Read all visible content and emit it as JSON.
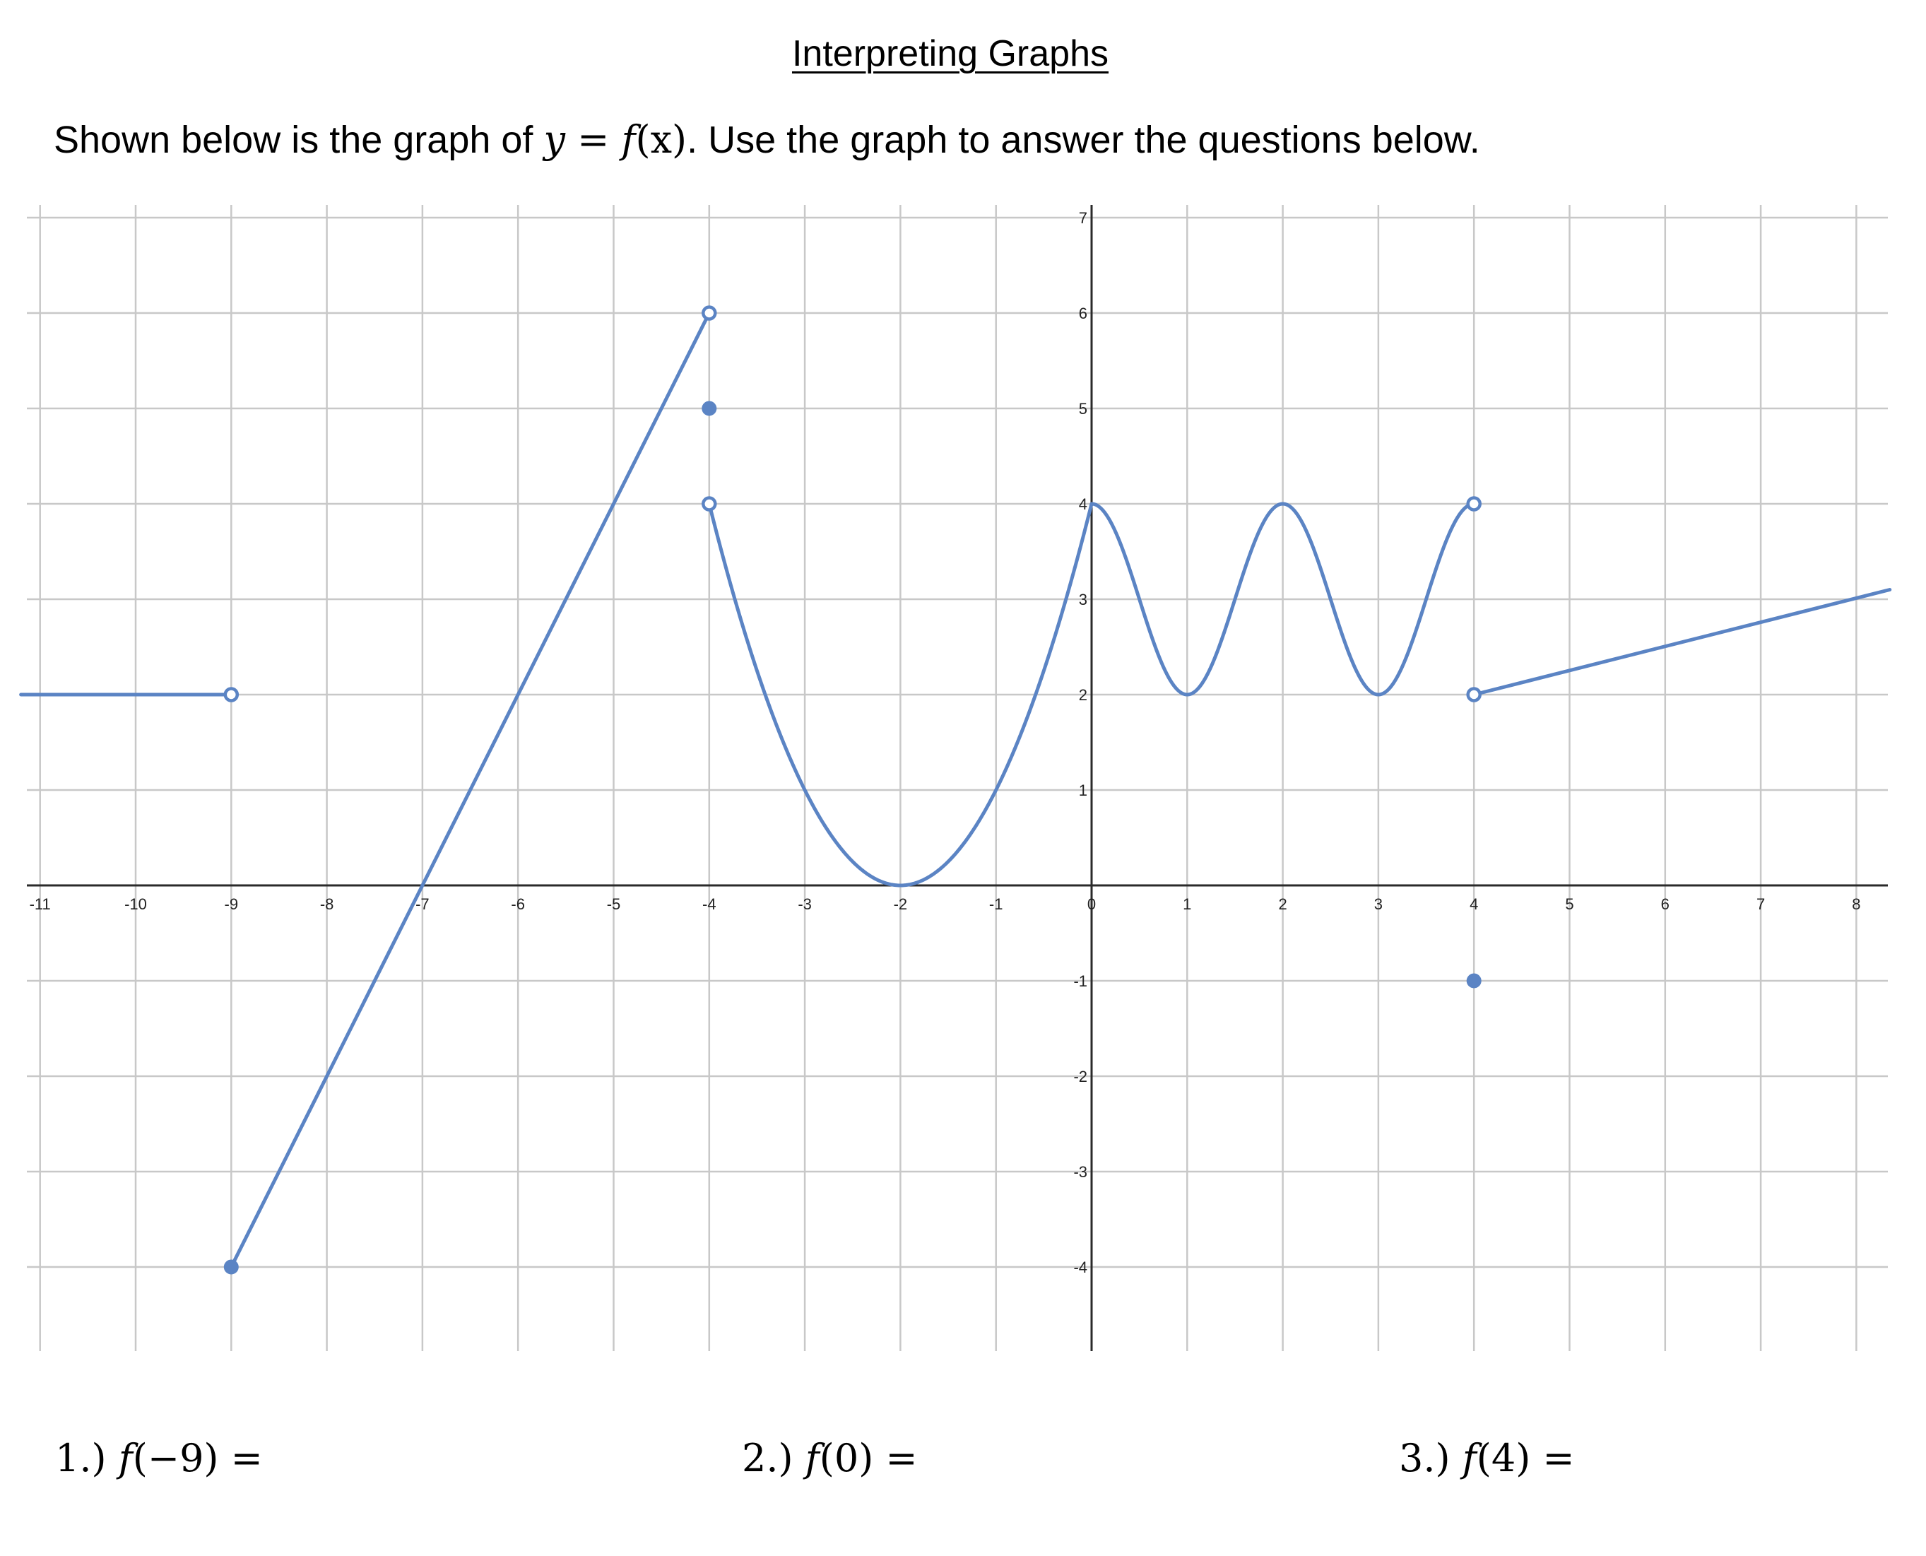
{
  "title": "Interpreting Graphs",
  "intro": {
    "before": "Shown below is the graph of ",
    "math_var": "y",
    "math_eq": " = ",
    "math_fn": "f",
    "math_arg": "(x)",
    "after": ".  Use the graph to answer the questions below."
  },
  "questions": [
    {
      "number": "1.) ",
      "fn": "f",
      "arg": "(−9)",
      "eq": " ="
    },
    {
      "number": "2.) ",
      "fn": "f",
      "arg": "(0)",
      "eq": " ="
    },
    {
      "number": "3.) ",
      "fn": "f",
      "arg": "(4)",
      "eq": " ="
    }
  ],
  "colors": {
    "curve": "#5b84c4",
    "grid": "#c8c8c8",
    "axis": "#2a2a2a"
  },
  "chart_data": {
    "type": "line",
    "title": "",
    "xlabel": "",
    "ylabel": "",
    "xlim": [
      -11,
      8
    ],
    "ylim": [
      -4,
      7
    ],
    "grid": true,
    "x_ticks": [
      "-11",
      "-10",
      "-9",
      "-8",
      "-7",
      "-6",
      "-5",
      "-4",
      "-3",
      "-2",
      "-1",
      "0",
      "1",
      "2",
      "3",
      "4",
      "5",
      "6",
      "7",
      "8"
    ],
    "y_ticks": [
      {
        "v": 7,
        "label": "7"
      },
      {
        "v": 6,
        "label": "6"
      },
      {
        "v": 5,
        "label": "5"
      },
      {
        "v": 4,
        "label": "4"
      },
      {
        "v": 3,
        "label": "3"
      },
      {
        "v": 2,
        "label": "2"
      },
      {
        "v": 1,
        "label": "1"
      },
      {
        "v": -1,
        "label": "-1"
      },
      {
        "v": -2,
        "label": "-2"
      },
      {
        "v": -3,
        "label": "-3"
      },
      {
        "v": -4,
        "label": "-4"
      }
    ],
    "pieces": [
      {
        "kind": "segment",
        "points": [
          [
            -11.2,
            2
          ],
          [
            -9,
            2
          ]
        ]
      },
      {
        "kind": "segment",
        "points": [
          [
            -9,
            -4
          ],
          [
            -4,
            6
          ]
        ]
      },
      {
        "kind": "parabola",
        "domain": [
          -4,
          0
        ],
        "formula": "(x+2)^2",
        "vertex": [
          -2,
          0
        ]
      },
      {
        "kind": "cosine",
        "domain": [
          0,
          4
        ],
        "formula": "3 + cos(pi*x)",
        "maxima": [
          [
            0,
            4
          ],
          [
            2,
            4
          ],
          [
            4,
            4
          ]
        ],
        "minima": [
          [
            1,
            2
          ],
          [
            3,
            2
          ]
        ]
      },
      {
        "kind": "ray",
        "points": [
          [
            4,
            2
          ],
          [
            8.35,
            3.1
          ]
        ]
      }
    ],
    "open_points": [
      [
        -9,
        2
      ],
      [
        -4,
        6
      ],
      [
        -4,
        4
      ],
      [
        4,
        4
      ],
      [
        4,
        2
      ]
    ],
    "closed_points": [
      [
        -9,
        -4
      ],
      [
        -4,
        5
      ],
      [
        4,
        -1
      ]
    ]
  }
}
